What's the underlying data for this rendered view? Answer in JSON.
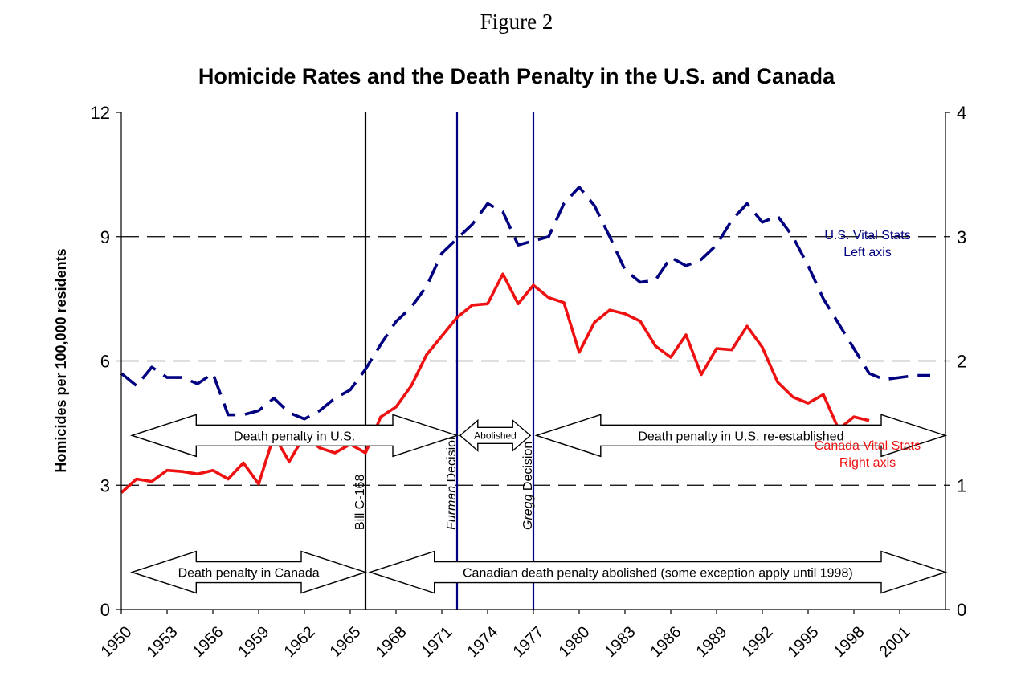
{
  "figure_label": "Figure 2",
  "chart_data": {
    "type": "line",
    "title": "Homicide Rates and the Death Penalty in the U.S. and Canada",
    "ylabel": "Homicides per 100,000 residents",
    "xlabel": "",
    "ylim_left": [
      0,
      12
    ],
    "ylim_right": [
      0,
      4
    ],
    "yticks_left": [
      "0",
      "3",
      "6",
      "9",
      "12"
    ],
    "yticks_right": [
      "0",
      "1",
      "2",
      "3",
      "4"
    ],
    "xlim": [
      1950,
      2004
    ],
    "xticks": [
      "1950",
      "1953",
      "1956",
      "1959",
      "1962",
      "1965",
      "1968",
      "1971",
      "1974",
      "1977",
      "1980",
      "1983",
      "1986",
      "1989",
      "1992",
      "1995",
      "1998",
      "2001"
    ],
    "grid": "horizontal dashed",
    "series": [
      {
        "name": "U.S. Vital Stats",
        "axis_note": "Left axis",
        "axis": "left",
        "style": "dashed",
        "color": "#000080",
        "x": [
          1950,
          1951,
          1952,
          1953,
          1954,
          1955,
          1956,
          1957,
          1958,
          1959,
          1960,
          1961,
          1962,
          1963,
          1964,
          1965,
          1966,
          1967,
          1968,
          1969,
          1970,
          1971,
          1972,
          1973,
          1974,
          1975,
          1976,
          1977,
          1978,
          1979,
          1980,
          1981,
          1982,
          1983,
          1984,
          1985,
          1986,
          1987,
          1988,
          1989,
          1990,
          1991,
          1992,
          1993,
          1994,
          1995,
          1996,
          1997,
          1998,
          1999,
          2000,
          2001,
          2002,
          2003
        ],
        "values": [
          5.7,
          5.4,
          5.85,
          5.6,
          5.6,
          5.45,
          5.7,
          4.7,
          4.7,
          4.8,
          5.1,
          4.75,
          4.6,
          4.8,
          5.1,
          5.3,
          5.8,
          6.4,
          6.95,
          7.3,
          7.8,
          8.6,
          8.95,
          9.3,
          9.8,
          9.6,
          8.8,
          8.9,
          9.0,
          9.8,
          10.2,
          9.75,
          9.0,
          8.2,
          7.9,
          7.95,
          8.5,
          8.3,
          8.45,
          8.8,
          9.4,
          9.8,
          9.35,
          9.5,
          9.0,
          8.3,
          7.5,
          6.9,
          6.3,
          5.7,
          5.55,
          5.6,
          5.65,
          5.65
        ]
      },
      {
        "name": "Canada Vital Stats",
        "axis_note": "Right axis",
        "axis": "right",
        "style": "solid",
        "color": "#ee1111",
        "x": [
          1950,
          1951,
          1952,
          1953,
          1954,
          1955,
          1956,
          1957,
          1958,
          1959,
          1960,
          1961,
          1962,
          1963,
          1964,
          1965,
          1966,
          1967,
          1968,
          1969,
          1970,
          1971,
          1972,
          1973,
          1974,
          1975,
          1976,
          1977,
          1978,
          1979,
          1980,
          1981,
          1982,
          1983,
          1984,
          1985,
          1986,
          1987,
          1988,
          1989,
          1990,
          1991,
          1992,
          1993,
          1994,
          1995,
          1996,
          1997,
          1998,
          1999
        ],
        "values": [
          0.94,
          1.05,
          1.03,
          1.12,
          1.11,
          1.09,
          1.12,
          1.05,
          1.18,
          1.01,
          1.4,
          1.19,
          1.4,
          1.3,
          1.26,
          1.33,
          1.26,
          1.55,
          1.63,
          1.8,
          2.05,
          2.2,
          2.35,
          2.45,
          2.46,
          2.7,
          2.46,
          2.61,
          2.51,
          2.47,
          2.07,
          2.31,
          2.41,
          2.38,
          2.32,
          2.12,
          2.03,
          2.21,
          1.89,
          2.1,
          2.09,
          2.28,
          2.11,
          1.83,
          1.71,
          1.66,
          1.73,
          1.45,
          1.55,
          1.52
        ]
      }
    ],
    "events": [
      {
        "year": 1966,
        "name": "Bill C-168",
        "italic": "",
        "rest": "",
        "color": "#000000"
      },
      {
        "year": 1972,
        "name": "Furman Decision",
        "italic": "Furman",
        "rest": " Decision",
        "color": "#000080"
      },
      {
        "year": 1977,
        "name": "Gregg Decision",
        "italic": "Gregg",
        "rest": " Decision",
        "color": "#000080"
      }
    ],
    "annotations": [
      {
        "text": "Death penalty in U.S.",
        "from": 1950.7,
        "to": 1972.0,
        "y": 1.4
      },
      {
        "text": "Abolished",
        "from": 1972.2,
        "to": 1976.8,
        "y": 1.4,
        "small": true
      },
      {
        "text": "Death penalty in U.S. re-established",
        "from": 1977.2,
        "to": 2004.0,
        "y": 1.4
      },
      {
        "text": "Death penalty in Canada",
        "from": 1950.7,
        "to": 1966.0,
        "y": 0.3
      },
      {
        "text": "Canadian death penalty abolished (some exception apply until 1998)",
        "from": 1966.3,
        "to": 2004.0,
        "y": 0.3
      }
    ],
    "legend": [
      {
        "line1": "U.S. Vital Stats",
        "line2": "Left axis",
        "placement": "upper-right",
        "color": "#000080"
      },
      {
        "line1": "Canada Vital Stats",
        "line2": "Right axis",
        "placement": "middle-right",
        "color": "#ee1111"
      }
    ]
  }
}
